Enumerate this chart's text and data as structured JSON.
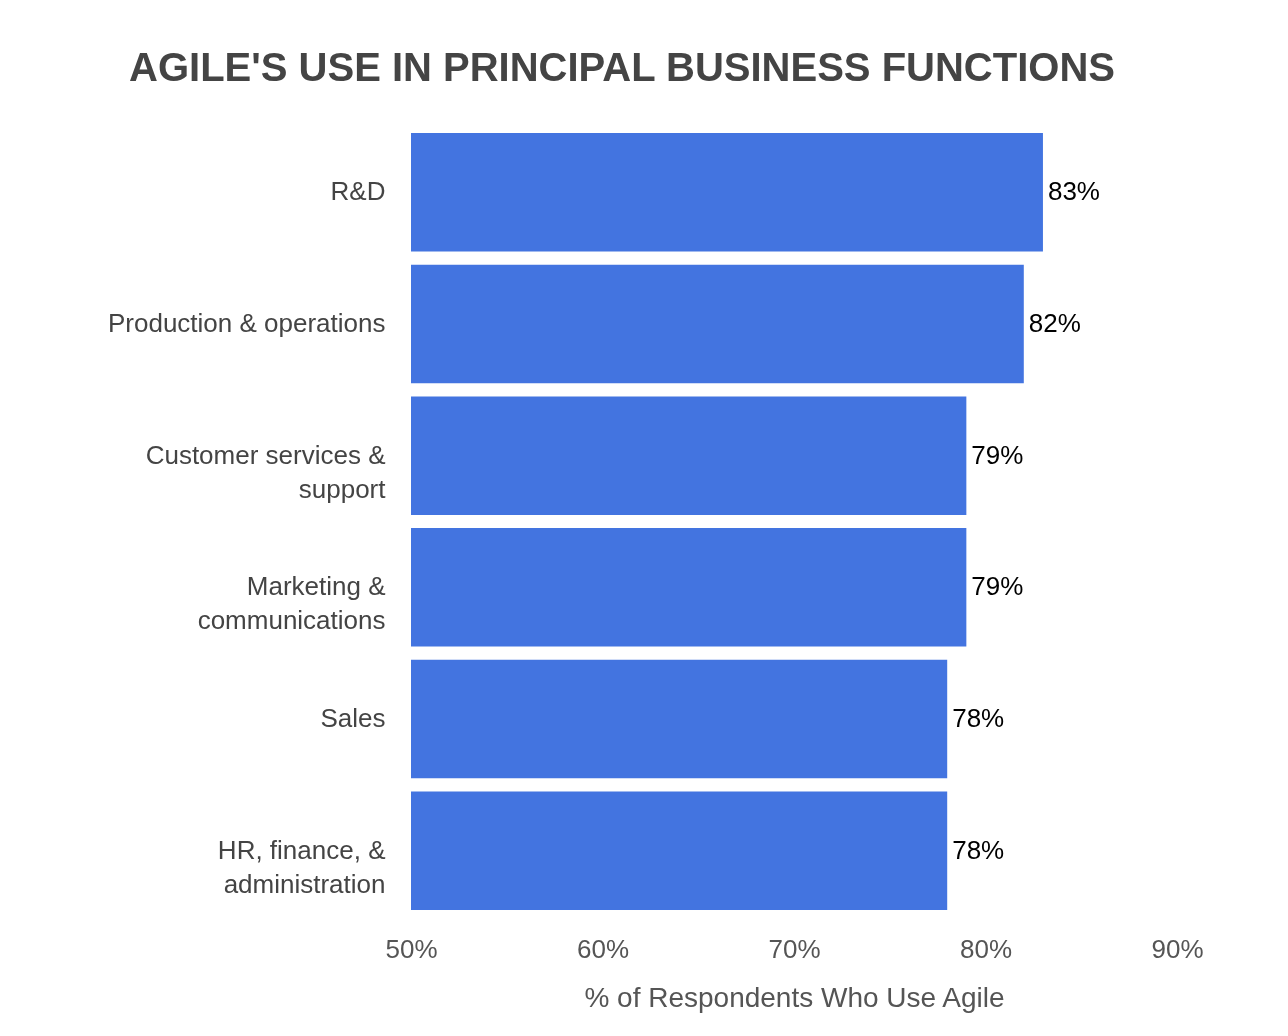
{
  "chart_data": {
    "type": "bar",
    "orientation": "horizontal",
    "title": "AGILE'S USE IN PRINCIPAL BUSINESS FUNCTIONS",
    "xlabel": "% of Respondents Who Use Agile",
    "categories": [
      "R&D",
      "Production & operations",
      "Customer services & support",
      "Marketing & communications",
      "Sales",
      "HR, finance, & administration"
    ],
    "values": [
      83,
      82,
      79,
      79,
      78,
      78
    ],
    "value_labels": [
      "83%",
      "82%",
      "79%",
      "79%",
      "78%",
      "78%"
    ],
    "color": "#4374e0",
    "xlim": [
      50,
      90
    ],
    "xticks": [
      {
        "value": 50,
        "label": "50%"
      },
      {
        "value": 60,
        "label": "60%"
      },
      {
        "value": 70,
        "label": "70%"
      },
      {
        "value": 80,
        "label": "80%"
      },
      {
        "value": 90,
        "label": "90%"
      }
    ]
  }
}
